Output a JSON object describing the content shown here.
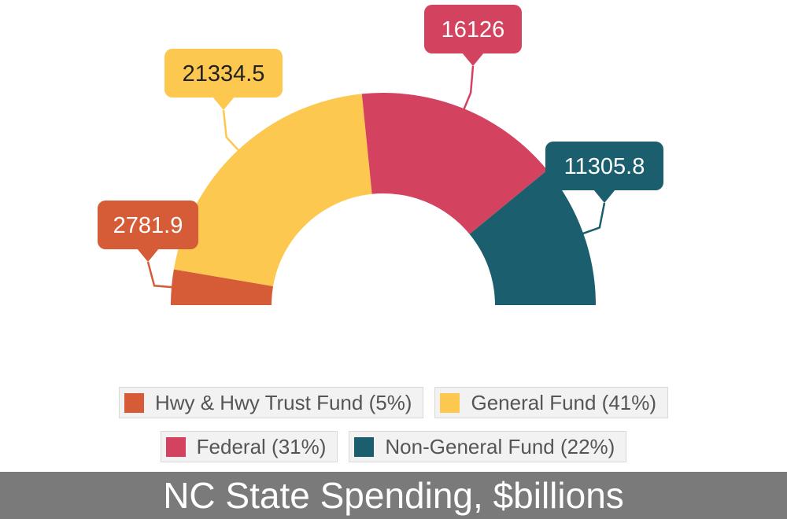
{
  "chart_data": {
    "type": "pie",
    "variant": "semicircle-donut",
    "title": "NC State Spending, $billions",
    "slices": [
      {
        "name": "Hwy & Hwy Trust Fund",
        "value": 2781.9,
        "value_label": "2781.9",
        "legend_label": "Hwy & Hwy Trust Fund (5%)",
        "percent": 5,
        "color": "#d65c37",
        "label_text_color": "#ffffff"
      },
      {
        "name": "General Fund",
        "value": 21334.5,
        "value_label": "21334.5",
        "legend_label": "General Fund (41%)",
        "percent": 41,
        "color": "#fdc84f",
        "label_text_color": "#222222"
      },
      {
        "name": "Federal",
        "value": 16126,
        "value_label": "16126",
        "legend_label": "Federal (31%)",
        "percent": 31,
        "color": "#d3435f",
        "label_text_color": "#ffffff"
      },
      {
        "name": "Non-General Fund",
        "value": 11305.8,
        "value_label": "11305.8",
        "legend_label": "Non-General Fund (22%)",
        "percent": 22,
        "color": "#1b5e6d",
        "label_text_color": "#ffffff"
      }
    ],
    "legend_placement": "bottom"
  }
}
